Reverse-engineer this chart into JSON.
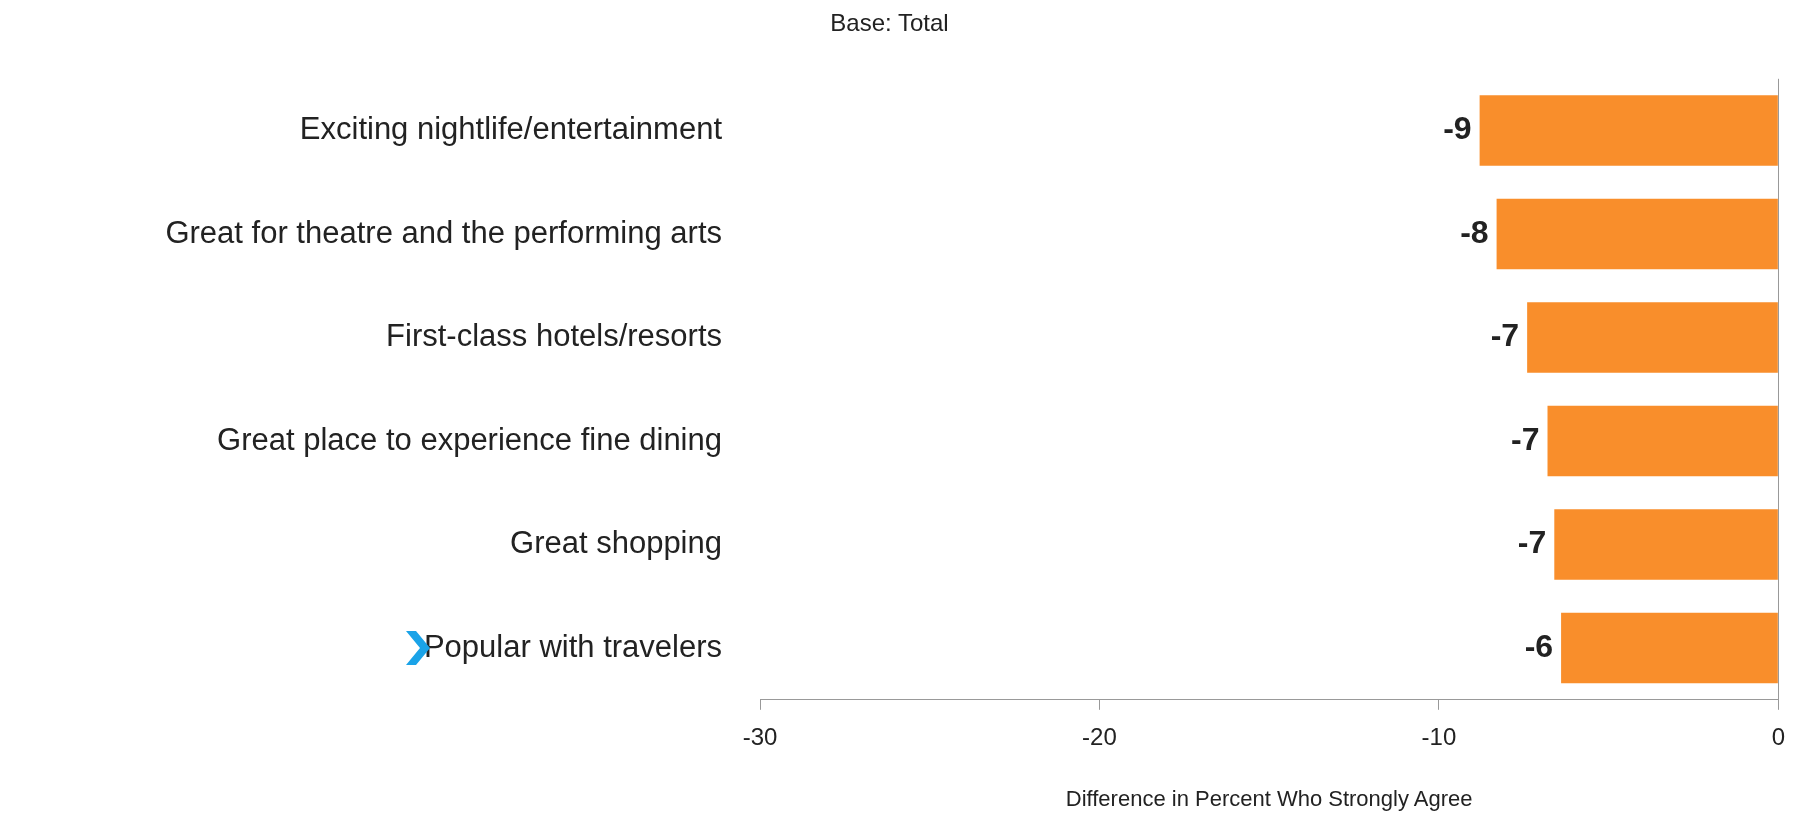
{
  "chart_data": {
    "type": "bar",
    "orientation": "horizontal",
    "title": "Base: Total",
    "xlabel": "Difference in Percent Who Strongly Agree",
    "categories": [
      "Exciting nightlife/entertainment",
      "Great for theatre and the performing arts",
      "First-class hotels/resorts",
      "Great place to experience fine dining",
      "Great shopping",
      "Popular with travelers"
    ],
    "values": [
      -8.8,
      -8.3,
      -7.4,
      -6.8,
      -6.6,
      -6.4
    ],
    "value_labels": [
      "-9",
      "-8",
      "-7",
      "-7",
      "-7",
      "-6"
    ],
    "color": "#f98e2b",
    "xlim": [
      -30,
      0
    ],
    "xticks": [
      -30,
      -20,
      -10,
      0
    ]
  }
}
